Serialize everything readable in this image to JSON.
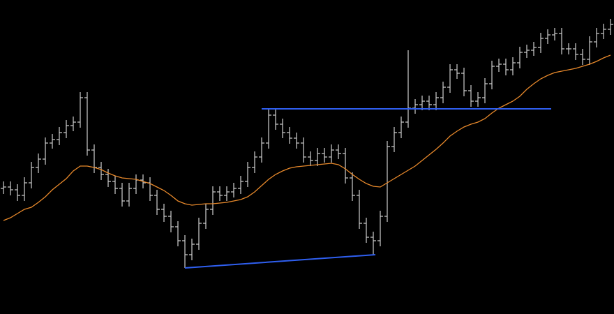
{
  "chart_data": {
    "type": "ohlc",
    "open": [
      180,
      182,
      178,
      170,
      188,
      210,
      222,
      245,
      250,
      260,
      270,
      275,
      310,
      235,
      210,
      200,
      190,
      180,
      162,
      180,
      192,
      188,
      170,
      150,
      140,
      125,
      105,
      85,
      100,
      130,
      150,
      175,
      170,
      175,
      180,
      190,
      210,
      225,
      245,
      285,
      272,
      260,
      252,
      245,
      225,
      220,
      230,
      225,
      235,
      230,
      195,
      170,
      130,
      110,
      105,
      140,
      240,
      260,
      275,
      295,
      300,
      305,
      300,
      310,
      325,
      350,
      345,
      320,
      305,
      310,
      330,
      355,
      358,
      350,
      360,
      375,
      378,
      382,
      395,
      400,
      402,
      380,
      380,
      372,
      365,
      390,
      402,
      408
    ],
    "high": [
      190,
      190,
      186,
      196,
      218,
      230,
      253,
      258,
      268,
      278,
      283,
      318,
      318,
      243,
      218,
      208,
      198,
      188,
      188,
      200,
      200,
      196,
      178,
      158,
      148,
      133,
      113,
      108,
      138,
      158,
      183,
      183,
      183,
      188,
      198,
      218,
      233,
      253,
      293,
      293,
      280,
      268,
      260,
      253,
      233,
      238,
      238,
      243,
      243,
      238,
      203,
      178,
      138,
      118,
      148,
      248,
      268,
      283,
      378,
      308,
      313,
      313,
      318,
      333,
      358,
      358,
      353,
      328,
      318,
      338,
      363,
      366,
      366,
      368,
      383,
      386,
      390,
      403,
      408,
      410,
      410,
      388,
      388,
      380,
      398,
      410,
      416,
      423
    ],
    "low": [
      172,
      170,
      162,
      162,
      180,
      202,
      214,
      237,
      242,
      252,
      262,
      267,
      227,
      202,
      192,
      182,
      172,
      154,
      154,
      172,
      180,
      162,
      142,
      132,
      117,
      97,
      66,
      77,
      92,
      122,
      142,
      162,
      162,
      167,
      172,
      182,
      202,
      217,
      237,
      264,
      252,
      244,
      237,
      217,
      212,
      212,
      217,
      217,
      222,
      187,
      162,
      122,
      102,
      85,
      97,
      132,
      232,
      252,
      267,
      287,
      292,
      292,
      292,
      302,
      317,
      337,
      312,
      297,
      297,
      302,
      322,
      347,
      342,
      342,
      352,
      367,
      370,
      374,
      387,
      392,
      372,
      372,
      364,
      357,
      357,
      382,
      394,
      400
    ],
    "close": [
      182,
      178,
      170,
      188,
      210,
      222,
      245,
      250,
      260,
      270,
      275,
      310,
      235,
      210,
      200,
      190,
      180,
      162,
      180,
      192,
      188,
      170,
      150,
      140,
      125,
      105,
      85,
      100,
      130,
      150,
      175,
      170,
      175,
      180,
      190,
      210,
      225,
      245,
      285,
      272,
      260,
      252,
      245,
      225,
      220,
      230,
      225,
      235,
      230,
      195,
      170,
      130,
      110,
      105,
      140,
      240,
      260,
      275,
      295,
      300,
      305,
      300,
      310,
      325,
      350,
      345,
      320,
      305,
      310,
      330,
      355,
      358,
      350,
      360,
      375,
      378,
      382,
      395,
      400,
      402,
      380,
      380,
      372,
      365,
      390,
      402,
      408,
      415
    ],
    "color": "#d0d0d0",
    "moving_average": {
      "color": "#e8892b",
      "values": [
        134,
        138,
        144,
        150,
        153,
        160,
        168,
        178,
        186,
        194,
        205,
        212,
        212,
        210,
        207,
        202,
        198,
        195,
        194,
        193,
        190,
        187,
        182,
        177,
        170,
        162,
        158,
        156,
        157,
        158,
        158,
        159,
        160,
        162,
        164,
        168,
        175,
        184,
        193,
        200,
        205,
        209,
        211,
        212,
        213,
        214,
        215,
        216,
        214,
        208,
        200,
        193,
        187,
        183,
        182,
        188,
        194,
        200,
        206,
        212,
        220,
        228,
        236,
        245,
        255,
        262,
        268,
        272,
        275,
        280,
        288,
        295,
        300,
        305,
        312,
        322,
        330,
        337,
        342,
        346,
        348,
        350,
        352,
        355,
        358,
        362,
        367,
        371
      ]
    },
    "trend_lines": [
      {
        "x": [
          37,
          78.5
        ],
        "y": [
          294,
          294
        ],
        "color": "#2f5ff0"
      },
      {
        "x": [
          26,
          53.3
        ],
        "y": [
          66,
          85
        ],
        "color": "#2f5ff0"
      }
    ],
    "xlim": [
      -0.5,
      87.5
    ],
    "ylim": [
      0,
      450
    ]
  }
}
